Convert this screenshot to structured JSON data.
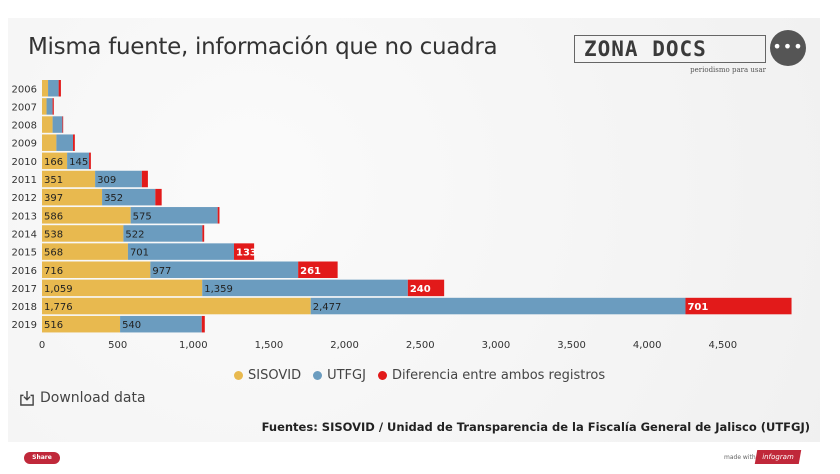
{
  "header": {
    "title": "Misma fuente, información que no cuadra",
    "logo_text": "ZONA DOCS",
    "logo_subtitle": "periodismo para usar",
    "menu_label": "•••"
  },
  "chart_data": {
    "type": "bar",
    "orientation": "horizontal",
    "stacked": true,
    "title": "Misma fuente, información que no cuadra",
    "categories": [
      "2006",
      "2007",
      "2008",
      "2009",
      "2010",
      "2011",
      "2012",
      "2013",
      "2014",
      "2015",
      "2016",
      "2017",
      "2018",
      "2019"
    ],
    "series": [
      {
        "name": "SISOVID",
        "color": "#e8b94f",
        "values": [
          40,
          30,
          70,
          95,
          166,
          351,
          397,
          586,
          538,
          568,
          716,
          1059,
          1776,
          516
        ]
      },
      {
        "name": "UTFGJ",
        "color": "#6b9cbf",
        "values": [
          70,
          40,
          65,
          110,
          145,
          309,
          352,
          575,
          522,
          701,
          977,
          1359,
          2477,
          540
        ]
      },
      {
        "name": "Diferencia entre ambos registros",
        "color": "#e21a1a",
        "values": [
          15,
          8,
          5,
          12,
          12,
          40,
          42,
          12,
          12,
          133,
          261,
          240,
          701,
          20
        ]
      }
    ],
    "labels": {
      "SISOVID": [
        "",
        "",
        "",
        "",
        "166",
        "351",
        "397",
        "586",
        "538",
        "568",
        "716",
        "1,059",
        "1,776",
        "516"
      ],
      "UTFGJ": [
        "",
        "",
        "",
        "",
        "145",
        "309",
        "352",
        "575",
        "522",
        "701",
        "977",
        "1,359",
        "2,477",
        "540"
      ],
      "Diferencia entre ambos registros": [
        "",
        "",
        "",
        "",
        "",
        "",
        "",
        "",
        "",
        "133",
        "261",
        "240",
        "701",
        ""
      ]
    },
    "xlim": [
      0,
      5000
    ],
    "xticks": [
      0,
      500,
      1000,
      1500,
      2000,
      2500,
      3000,
      3500,
      4000,
      4500
    ],
    "xtick_labels": [
      "0",
      "500",
      "1,000",
      "1,500",
      "2,000",
      "2,500",
      "3,000",
      "3,500",
      "4,000",
      "4,500"
    ],
    "grid": false,
    "legend": "bottom",
    "xlabel": "",
    "ylabel": ""
  },
  "download": {
    "label": "Download data",
    "icon": "download-icon"
  },
  "source": "Fuentes: SISOVID / Unidad de Transparencia de la Fiscalía General de Jalisco (UTFGJ)",
  "footer": {
    "share_label": "Share",
    "made_with": "made with",
    "brand": "infogram"
  }
}
